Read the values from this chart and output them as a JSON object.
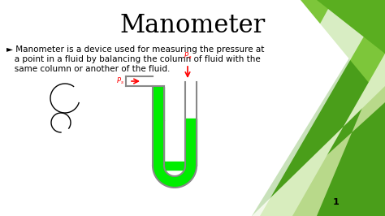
{
  "title": "Manometer",
  "title_fontsize": 22,
  "title_fontfamily": "DejaVu Serif",
  "bullet_text_line1": "► Manometer is a device used for measuring the pressure at",
  "bullet_text_line2": "   a point in a fluid by balancing the column of fluid with the",
  "bullet_text_line3": "   same column or another of the fluid.",
  "body_fontsize": 7.5,
  "body_fontfamily": "DejaVu Sans",
  "bg_color": "#ffffff",
  "green_color_dark": "#4a9e1a",
  "green_color_dark2": "#5aae20",
  "green_color_medium": "#7dc63a",
  "green_color_light": "#b8d98a",
  "green_color_vlight": "#d8edbe",
  "slide_number": "1",
  "fluid_green": "#00ee00",
  "tube_outline_color": "#888888",
  "tube_linewidth": 1.5,
  "Pa_label": "$P_a$",
  "Pb_label": "$P_s$"
}
